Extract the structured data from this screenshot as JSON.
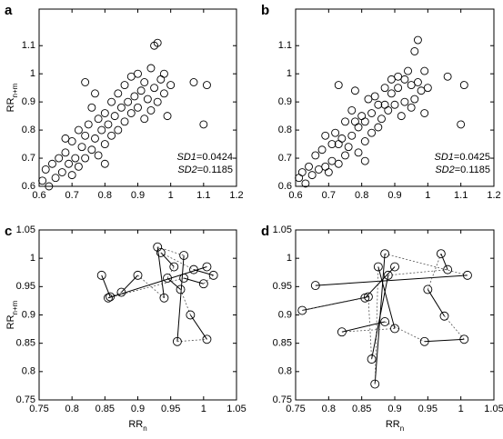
{
  "chart_data": [
    {
      "type": "scatter",
      "panel_label": "a",
      "y_label_main": "RR",
      "y_label_sub": "n+m",
      "annotations": [
        {
          "name": "SD1",
          "text": "=0.0424"
        },
        {
          "name": "SD2",
          "text": "=0.1185"
        }
      ],
      "xlim": [
        0.6,
        1.2
      ],
      "ylim": [
        0.6,
        1.23
      ],
      "xticks": [
        0.6,
        0.7,
        0.8,
        0.9,
        1,
        1.1,
        1.2
      ],
      "yticks": [
        0.6,
        0.7,
        0.8,
        0.9,
        1,
        1.1
      ],
      "x": [
        0.61,
        0.62,
        0.63,
        0.64,
        0.65,
        0.66,
        0.67,
        0.68,
        0.69,
        0.7,
        0.7,
        0.71,
        0.72,
        0.72,
        0.73,
        0.74,
        0.74,
        0.75,
        0.76,
        0.76,
        0.77,
        0.78,
        0.78,
        0.79,
        0.8,
        0.8,
        0.81,
        0.82,
        0.82,
        0.83,
        0.84,
        0.84,
        0.85,
        0.86,
        0.86,
        0.87,
        0.88,
        0.88,
        0.89,
        0.9,
        0.9,
        0.91,
        0.92,
        0.92,
        0.93,
        0.94,
        0.94,
        0.95,
        0.96,
        0.97,
        0.98,
        0.98,
        0.99,
        1.0,
        0.74,
        0.68,
        1.07,
        1.11,
        1.1,
        0.95,
        0.96,
        0.8,
        0.77
      ],
      "y": [
        0.62,
        0.66,
        0.6,
        0.68,
        0.63,
        0.7,
        0.65,
        0.72,
        0.68,
        0.64,
        0.76,
        0.7,
        0.8,
        0.67,
        0.74,
        0.78,
        0.7,
        0.82,
        0.73,
        0.88,
        0.77,
        0.84,
        0.71,
        0.8,
        0.86,
        0.75,
        0.82,
        0.9,
        0.78,
        0.85,
        0.93,
        0.8,
        0.88,
        0.83,
        0.96,
        0.9,
        0.86,
        0.99,
        0.92,
        0.88,
        1.0,
        0.94,
        0.84,
        0.97,
        0.91,
        1.02,
        0.87,
        0.95,
        0.9,
        0.98,
        0.93,
        1.0,
        0.85,
        0.96,
        0.97,
        0.77,
        0.97,
        0.96,
        0.82,
        1.1,
        1.11,
        0.68,
        0.93
      ]
    },
    {
      "type": "scatter",
      "panel_label": "b",
      "annotations": [
        {
          "name": "SD1",
          "text": "=0.0425"
        },
        {
          "name": "SD2",
          "text": "=0.1185"
        }
      ],
      "xlim": [
        0.6,
        1.2
      ],
      "ylim": [
        0.6,
        1.23
      ],
      "xticks": [
        0.6,
        0.7,
        0.8,
        0.9,
        1,
        1.1,
        1.2
      ],
      "yticks": [
        0.6,
        0.7,
        0.8,
        0.9,
        1,
        1.1
      ],
      "x": [
        0.61,
        0.62,
        0.63,
        0.64,
        0.65,
        0.66,
        0.67,
        0.68,
        0.69,
        0.7,
        0.71,
        0.71,
        0.72,
        0.73,
        0.73,
        0.74,
        0.75,
        0.75,
        0.76,
        0.77,
        0.77,
        0.78,
        0.79,
        0.79,
        0.8,
        0.81,
        0.81,
        0.82,
        0.83,
        0.83,
        0.84,
        0.85,
        0.85,
        0.86,
        0.87,
        0.87,
        0.88,
        0.89,
        0.89,
        0.9,
        0.91,
        0.91,
        0.92,
        0.93,
        0.93,
        0.94,
        0.95,
        0.95,
        0.96,
        0.97,
        0.98,
        0.99,
        0.99,
        1.0,
        0.73,
        0.69,
        1.06,
        1.11,
        1.1,
        0.96,
        0.97,
        0.81,
        0.78
      ],
      "y": [
        0.63,
        0.65,
        0.61,
        0.67,
        0.64,
        0.71,
        0.66,
        0.73,
        0.67,
        0.65,
        0.75,
        0.69,
        0.79,
        0.68,
        0.75,
        0.77,
        0.71,
        0.83,
        0.74,
        0.87,
        0.78,
        0.83,
        0.72,
        0.81,
        0.85,
        0.76,
        0.83,
        0.91,
        0.79,
        0.86,
        0.92,
        0.81,
        0.89,
        0.84,
        0.95,
        0.89,
        0.87,
        0.98,
        0.93,
        0.89,
        0.99,
        0.95,
        0.85,
        0.98,
        0.9,
        1.01,
        0.88,
        0.96,
        0.91,
        0.97,
        0.94,
        1.01,
        0.86,
        0.95,
        0.96,
        0.78,
        0.99,
        0.96,
        0.82,
        1.08,
        1.12,
        0.69,
        0.94
      ]
    },
    {
      "type": "poincare-path",
      "panel_label": "c",
      "y_label_main": "RR",
      "y_label_sub": "n+m",
      "x_label_main": "RR",
      "x_label_sub": "n",
      "xlim": [
        0.75,
        1.05
      ],
      "ylim": [
        0.75,
        1.05
      ],
      "xticks": [
        0.75,
        0.8,
        0.85,
        0.9,
        0.95,
        1,
        1.05
      ],
      "yticks": [
        0.75,
        0.8,
        0.85,
        0.9,
        0.95,
        1,
        1.05
      ],
      "x": [
        0.845,
        0.858,
        0.875,
        0.9,
        0.94,
        0.93,
        0.97,
        0.96,
        1.005,
        0.98,
        0.965,
        0.945,
        0.955,
        0.935,
        0.985,
        1.015,
        1.0,
        0.97,
        0.855,
        1.005
      ],
      "y": [
        0.97,
        0.932,
        0.94,
        0.97,
        0.93,
        1.02,
        1.005,
        0.853,
        0.857,
        0.9,
        0.945,
        0.965,
        0.985,
        1.01,
        0.98,
        0.97,
        0.955,
        0.965,
        0.93,
        0.985
      ]
    },
    {
      "type": "poincare-path",
      "panel_label": "d",
      "x_label_main": "RR",
      "x_label_sub": "n",
      "xlim": [
        0.75,
        1.05
      ],
      "ylim": [
        0.75,
        1.05
      ],
      "xticks": [
        0.75,
        0.8,
        0.85,
        0.9,
        0.95,
        1,
        1.05
      ],
      "yticks": [
        0.75,
        0.8,
        0.85,
        0.9,
        0.95,
        1,
        1.05
      ],
      "x": [
        0.78,
        1.01,
        0.885,
        0.87,
        0.875,
        0.9,
        0.82,
        0.885,
        0.945,
        1.005,
        0.975,
        0.95,
        0.97,
        0.98,
        0.89,
        0.865,
        0.86,
        0.76,
        0.855,
        0.9
      ],
      "y": [
        0.952,
        0.97,
        1.008,
        0.778,
        0.985,
        0.876,
        0.87,
        0.888,
        0.853,
        0.857,
        0.898,
        0.945,
        1.008,
        0.98,
        0.97,
        0.822,
        0.932,
        0.908,
        0.93,
        0.985
      ]
    }
  ]
}
